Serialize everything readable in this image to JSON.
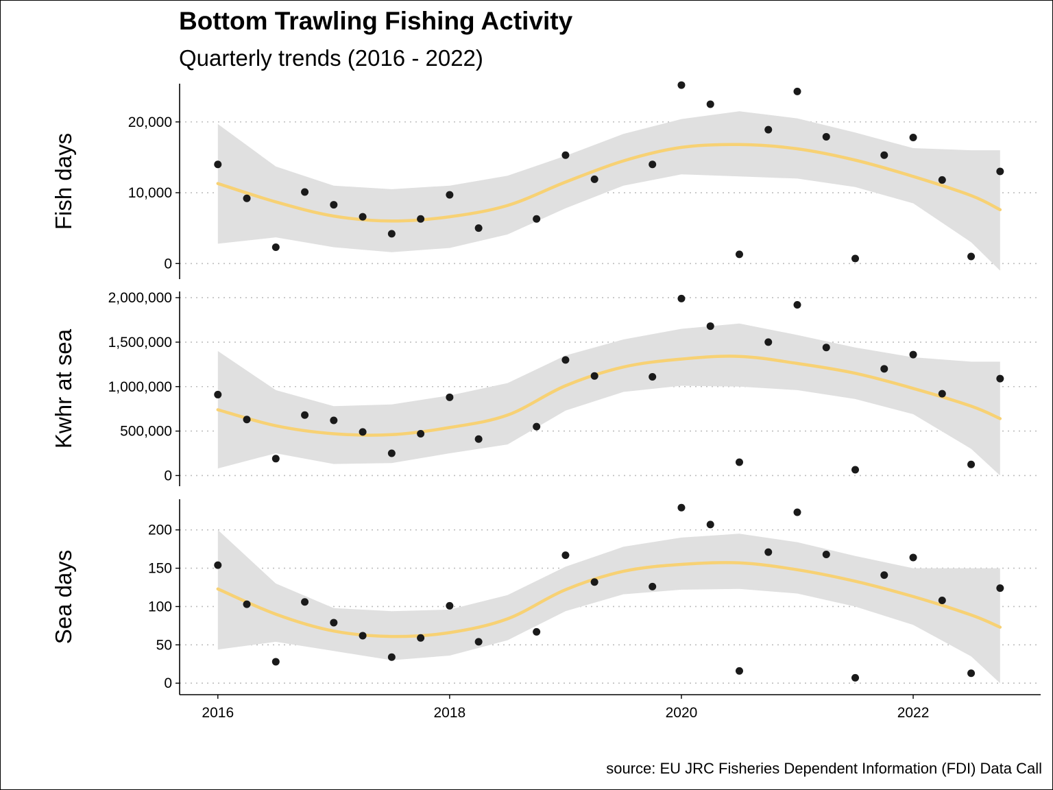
{
  "title": "Bottom Trawling Fishing Activity",
  "subtitle": "Quarterly trends (2016 - 2022)",
  "caption": "source: EU JRC Fisheries Dependent Information (FDI) Data Call",
  "colors": {
    "points": "#1a1a1a",
    "trend_line": "#f7d174",
    "confidence_band": "#e0e0e0",
    "gridline": "#bdbdbd",
    "axis": "#000000"
  },
  "chart_data": {
    "type": "scatter",
    "smoothing": "loess trend line with shaded confidence band",
    "grid": "horizontal dotted major gridlines",
    "legend": "none",
    "x": [
      2016.0,
      2016.25,
      2016.5,
      2016.75,
      2017.0,
      2017.25,
      2017.5,
      2017.75,
      2018.0,
      2018.25,
      2018.5,
      2018.75,
      2019.0,
      2019.25,
      2019.5,
      2019.75,
      2020.0,
      2020.25,
      2020.5,
      2020.75,
      2021.0,
      2021.25,
      2021.5,
      2021.75,
      2022.0,
      2022.25,
      2022.5,
      2022.75
    ],
    "xlim": [
      2015.67,
      2023.1
    ],
    "x_ticks": [
      {
        "value": 2016,
        "label": "2016"
      },
      {
        "value": 2018,
        "label": "2018"
      },
      {
        "value": 2020,
        "label": "2020"
      },
      {
        "value": 2022,
        "label": "2022"
      }
    ],
    "panels": [
      {
        "ylabel": "Fish days",
        "ylim": [
          -2200,
          25400
        ],
        "y_ticks": [
          {
            "value": 0,
            "label": "0"
          },
          {
            "value": 10000,
            "label": "10,000"
          },
          {
            "value": 20000,
            "label": "20,000"
          }
        ],
        "values": [
          14000,
          9200,
          2300,
          10100,
          8300,
          6600,
          4200,
          6300,
          9700,
          5000,
          null,
          6300,
          15300,
          11900,
          null,
          14000,
          25200,
          22500,
          1300,
          18900,
          24300,
          17900,
          700,
          15300,
          17800,
          11800,
          1000,
          13000
        ],
        "trend": {
          "x": [
            2016.0,
            2016.5,
            2017.0,
            2017.5,
            2018.0,
            2018.5,
            2019.0,
            2019.5,
            2020.0,
            2020.5,
            2021.0,
            2021.5,
            2022.0,
            2022.5,
            2022.75
          ],
          "fit": [
            11300,
            8700,
            6700,
            6000,
            6600,
            8200,
            11500,
            14500,
            16400,
            16800,
            16200,
            14600,
            12300,
            9600,
            7600
          ],
          "lower": [
            2800,
            3700,
            2300,
            1600,
            2200,
            4100,
            7800,
            11000,
            12600,
            12300,
            12000,
            10800,
            8500,
            3000,
            -1000
          ],
          "upper": [
            19700,
            13700,
            11000,
            10500,
            11000,
            12400,
            15200,
            18300,
            20400,
            21500,
            20500,
            18500,
            16300,
            16000,
            16000
          ]
        }
      },
      {
        "ylabel": "Kwhr at sea",
        "ylim": [
          -120000,
          2070000
        ],
        "y_ticks": [
          {
            "value": 0,
            "label": "0"
          },
          {
            "value": 500000,
            "label": "500,000"
          },
          {
            "value": 1000000,
            "label": "1,000,000"
          },
          {
            "value": 1500000,
            "label": "1,500,000"
          },
          {
            "value": 2000000,
            "label": "2,000,000"
          }
        ],
        "values": [
          910000,
          630000,
          190000,
          680000,
          620000,
          490000,
          250000,
          470000,
          880000,
          410000,
          null,
          550000,
          1300000,
          1120000,
          null,
          1110000,
          1990000,
          1680000,
          150000,
          1500000,
          1920000,
          1440000,
          65000,
          1200000,
          1360000,
          920000,
          125000,
          1090000
        ],
        "trend": {
          "x": [
            2016.0,
            2016.5,
            2017.0,
            2017.5,
            2018.0,
            2018.5,
            2019.0,
            2019.5,
            2020.0,
            2020.5,
            2021.0,
            2021.5,
            2022.0,
            2022.5,
            2022.75
          ],
          "fit": [
            740000,
            560000,
            470000,
            460000,
            540000,
            680000,
            1010000,
            1220000,
            1310000,
            1340000,
            1260000,
            1150000,
            980000,
            780000,
            640000
          ],
          "lower": [
            80000,
            250000,
            130000,
            140000,
            250000,
            350000,
            730000,
            940000,
            1010000,
            1000000,
            960000,
            860000,
            690000,
            300000,
            0
          ],
          "upper": [
            1400000,
            960000,
            780000,
            800000,
            900000,
            1040000,
            1350000,
            1530000,
            1650000,
            1710000,
            1580000,
            1440000,
            1330000,
            1280000,
            1280000
          ]
        }
      },
      {
        "ylabel": "Sea days",
        "ylim": [
          -15,
          240
        ],
        "y_ticks": [
          {
            "value": 0,
            "label": "0"
          },
          {
            "value": 50,
            "label": "50"
          },
          {
            "value": 100,
            "label": "100"
          },
          {
            "value": 150,
            "label": "150"
          },
          {
            "value": 200,
            "label": "200"
          }
        ],
        "values": [
          154,
          103,
          28,
          106,
          79,
          62,
          34,
          59,
          101,
          54,
          null,
          67,
          167,
          132,
          null,
          126,
          229,
          207,
          16,
          171,
          223,
          168,
          7,
          141,
          164,
          108,
          13,
          124
        ],
        "trend": {
          "x": [
            2016.0,
            2016.5,
            2017.0,
            2017.5,
            2018.0,
            2018.5,
            2019.0,
            2019.5,
            2020.0,
            2020.5,
            2021.0,
            2021.5,
            2022.0,
            2022.5,
            2022.75
          ],
          "fit": [
            123,
            90,
            68,
            61,
            66,
            84,
            122,
            146,
            155,
            157,
            148,
            133,
            113,
            89,
            73
          ],
          "lower": [
            44,
            54,
            42,
            30,
            36,
            56,
            94,
            116,
            122,
            123,
            117,
            100,
            76,
            35,
            0
          ],
          "upper": [
            200,
            130,
            98,
            94,
            96,
            115,
            152,
            178,
            190,
            195,
            184,
            166,
            150,
            150,
            150
          ]
        }
      }
    ]
  }
}
